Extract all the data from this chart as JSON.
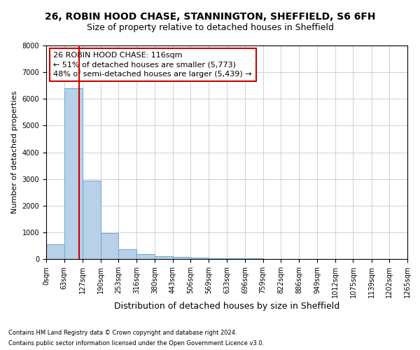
{
  "title1": "26, ROBIN HOOD CHASE, STANNINGTON, SHEFFIELD, S6 6FH",
  "title2": "Size of property relative to detached houses in Sheffield",
  "xlabel": "Distribution of detached houses by size in Sheffield",
  "ylabel": "Number of detached properties",
  "footnote1": "Contains HM Land Registry data © Crown copyright and database right 2024.",
  "footnote2": "Contains public sector information licensed under the Open Government Licence v3.0.",
  "bin_edges": [
    0,
    63,
    127,
    190,
    253,
    316,
    380,
    443,
    506,
    569,
    633,
    696,
    759,
    822,
    886,
    949,
    1012,
    1075,
    1139,
    1202,
    1265
  ],
  "bin_counts": [
    550,
    6400,
    2950,
    975,
    375,
    185,
    105,
    80,
    55,
    35,
    25,
    18,
    12,
    8,
    6,
    5,
    4,
    3,
    2,
    1
  ],
  "bar_color": "#b8d0e8",
  "bar_edge_color": "#6aaad4",
  "property_size": 116,
  "red_line_color": "#cc0000",
  "annotation_text1": "26 ROBIN HOOD CHASE: 116sqm",
  "annotation_text2": "← 51% of detached houses are smaller (5,773)",
  "annotation_text3": "48% of semi-detached houses are larger (5,439) →",
  "annotation_box_color": "#ffffff",
  "annotation_box_edge": "#cc0000",
  "ylim": [
    0,
    8000
  ],
  "yticks": [
    0,
    1000,
    2000,
    3000,
    4000,
    5000,
    6000,
    7000,
    8000
  ],
  "bg_color": "#ffffff",
  "grid_color": "#c8c8d8",
  "title1_fontsize": 10,
  "title2_fontsize": 9,
  "xlabel_fontsize": 9,
  "ylabel_fontsize": 8,
  "annot_fontsize": 8,
  "tick_fontsize": 7,
  "footnote_fontsize": 6
}
